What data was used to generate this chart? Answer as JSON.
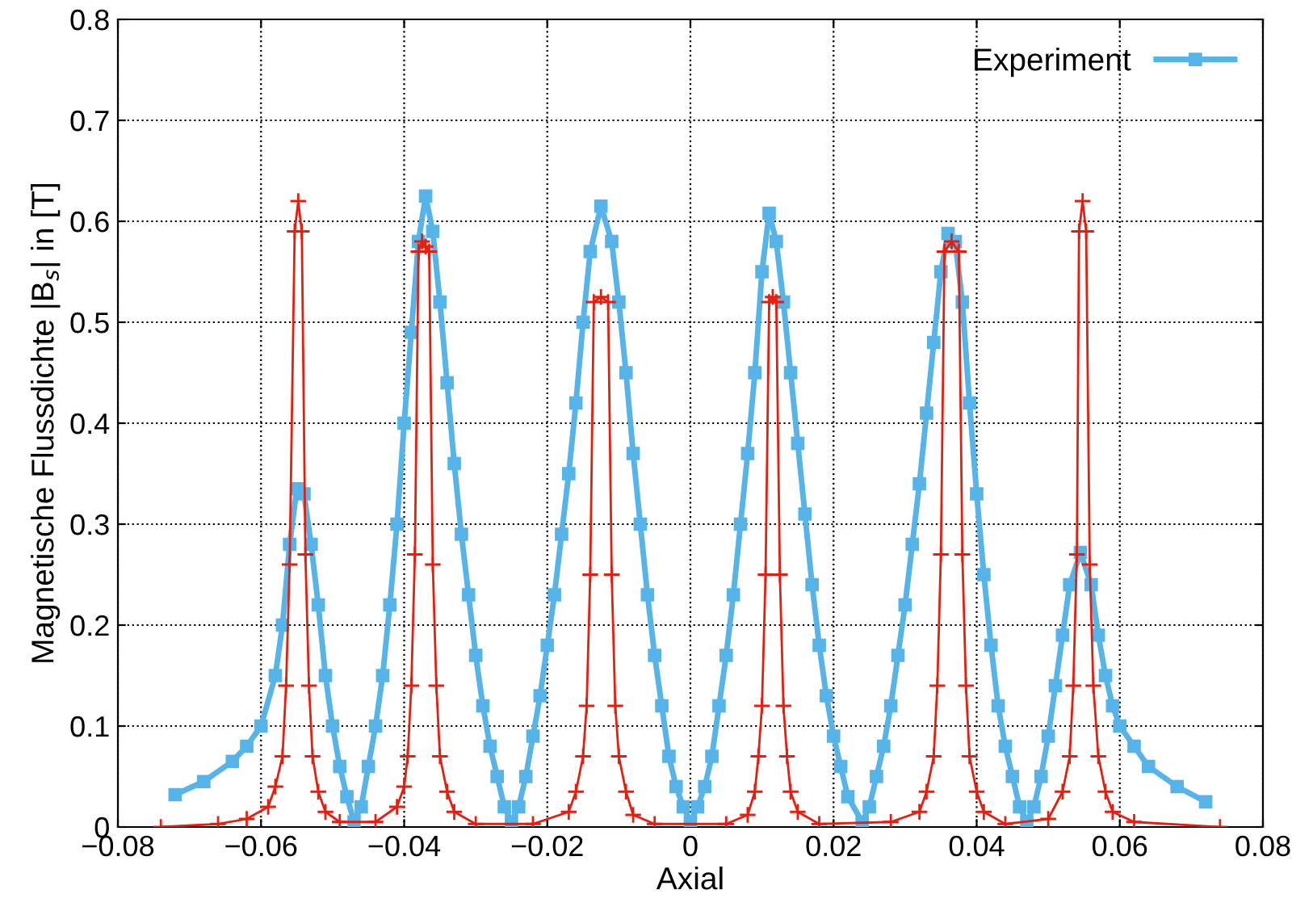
{
  "chart_data": {
    "type": "line",
    "xlabel": "Axial",
    "ylabel": "Magnetische Flussdichte |B$_{s}$| in [T]",
    "xlim": [
      -0.08,
      0.08
    ],
    "ylim": [
      0,
      0.8
    ],
    "xticks": [
      {
        "value": -0.08,
        "label": "−0.08"
      },
      {
        "value": -0.06,
        "label": "−0.06"
      },
      {
        "value": -0.04,
        "label": "−0.04"
      },
      {
        "value": -0.02,
        "label": "−0.02"
      },
      0,
      0.02,
      0.04,
      0.06,
      0.08
    ],
    "yticks": [
      0,
      0.1,
      0.2,
      0.3,
      0.4,
      0.5,
      0.6,
      0.7,
      0.8
    ],
    "grid": true,
    "legend": "top right",
    "line_style": "solid",
    "series": [
      {
        "name": "Experiment",
        "color": "#56b4e9",
        "marker": "square",
        "x": [
          -0.072,
          -0.068,
          -0.064,
          -0.062,
          -0.06,
          -0.058,
          -0.057,
          -0.056,
          -0.055,
          -0.054,
          -0.053,
          -0.052,
          -0.051,
          -0.05,
          -0.049,
          -0.048,
          -0.047,
          -0.046,
          -0.045,
          -0.044,
          -0.043,
          -0.042,
          -0.041,
          -0.04,
          -0.039,
          -0.038,
          -0.037,
          -0.036,
          -0.035,
          -0.034,
          -0.033,
          -0.032,
          -0.031,
          -0.03,
          -0.029,
          -0.028,
          -0.027,
          -0.026,
          -0.025,
          -0.024,
          -0.023,
          -0.022,
          -0.021,
          -0.02,
          -0.019,
          -0.018,
          -0.017,
          -0.016,
          -0.015,
          -0.014,
          -0.0125,
          -0.011,
          -0.01,
          -0.009,
          -0.008,
          -0.007,
          -0.006,
          -0.005,
          -0.004,
          -0.003,
          -0.002,
          -0.001,
          0.0,
          0.001,
          0.002,
          0.003,
          0.004,
          0.005,
          0.006,
          0.007,
          0.008,
          0.009,
          0.01,
          0.011,
          0.012,
          0.013,
          0.014,
          0.015,
          0.016,
          0.017,
          0.018,
          0.019,
          0.02,
          0.021,
          0.022,
          0.024,
          0.025,
          0.026,
          0.027,
          0.028,
          0.029,
          0.03,
          0.031,
          0.032,
          0.033,
          0.034,
          0.035,
          0.036,
          0.037,
          0.038,
          0.039,
          0.04,
          0.041,
          0.042,
          0.043,
          0.044,
          0.045,
          0.046,
          0.047,
          0.048,
          0.049,
          0.05,
          0.051,
          0.052,
          0.053,
          0.0545,
          0.056,
          0.057,
          0.058,
          0.059,
          0.06,
          0.062,
          0.064,
          0.068,
          0.072
        ],
        "values": [
          0.032,
          0.045,
          0.065,
          0.08,
          0.1,
          0.15,
          0.2,
          0.28,
          0.335,
          0.33,
          0.28,
          0.22,
          0.15,
          0.1,
          0.06,
          0.03,
          0.005,
          0.02,
          0.06,
          0.1,
          0.15,
          0.22,
          0.3,
          0.4,
          0.49,
          0.58,
          0.625,
          0.59,
          0.52,
          0.44,
          0.36,
          0.29,
          0.23,
          0.17,
          0.12,
          0.08,
          0.05,
          0.02,
          0.005,
          0.02,
          0.05,
          0.09,
          0.13,
          0.18,
          0.23,
          0.29,
          0.35,
          0.42,
          0.5,
          0.57,
          0.615,
          0.58,
          0.52,
          0.45,
          0.37,
          0.3,
          0.23,
          0.17,
          0.12,
          0.07,
          0.04,
          0.02,
          0.005,
          0.02,
          0.04,
          0.07,
          0.12,
          0.17,
          0.23,
          0.3,
          0.37,
          0.45,
          0.55,
          0.608,
          0.58,
          0.52,
          0.45,
          0.38,
          0.31,
          0.24,
          0.18,
          0.13,
          0.09,
          0.06,
          0.03,
          0.005,
          0.02,
          0.05,
          0.08,
          0.12,
          0.17,
          0.22,
          0.28,
          0.34,
          0.41,
          0.48,
          0.55,
          0.588,
          0.58,
          0.52,
          0.42,
          0.33,
          0.25,
          0.18,
          0.12,
          0.08,
          0.05,
          0.02,
          0.005,
          0.02,
          0.05,
          0.09,
          0.14,
          0.19,
          0.24,
          0.272,
          0.24,
          0.19,
          0.15,
          0.12,
          0.1,
          0.08,
          0.06,
          0.04,
          0.025
        ]
      },
      {
        "color": "#e51e10",
        "marker": "cross",
        "x": [
          -0.074,
          -0.066,
          -0.062,
          -0.059,
          -0.058,
          -0.057,
          -0.0565,
          -0.056,
          -0.0553,
          -0.0548,
          -0.0543,
          -0.0538,
          -0.0533,
          -0.0528,
          -0.052,
          -0.051,
          -0.049,
          -0.044,
          -0.041,
          -0.04,
          -0.0395,
          -0.039,
          -0.0385,
          -0.038,
          -0.0375,
          -0.037,
          -0.0365,
          -0.036,
          -0.0355,
          -0.035,
          -0.034,
          -0.033,
          -0.03,
          -0.022,
          -0.017,
          -0.016,
          -0.015,
          -0.0145,
          -0.014,
          -0.0135,
          -0.0125,
          -0.0115,
          -0.011,
          -0.0105,
          -0.01,
          -0.009,
          -0.008,
          -0.005,
          0.005,
          0.008,
          0.009,
          0.0095,
          0.01,
          0.0105,
          0.011,
          0.0115,
          0.012,
          0.0125,
          0.013,
          0.0135,
          0.014,
          0.015,
          0.018,
          0.028,
          0.032,
          0.033,
          0.034,
          0.0345,
          0.035,
          0.0355,
          0.0365,
          0.0375,
          0.038,
          0.0385,
          0.039,
          0.04,
          0.041,
          0.044,
          0.05,
          0.052,
          0.053,
          0.0535,
          0.054,
          0.0543,
          0.0548,
          0.0553,
          0.0558,
          0.0563,
          0.057,
          0.058,
          0.059,
          0.062,
          0.074
        ],
        "values": [
          0,
          0.003,
          0.008,
          0.02,
          0.04,
          0.07,
          0.14,
          0.26,
          0.59,
          0.62,
          0.59,
          0.27,
          0.14,
          0.07,
          0.035,
          0.015,
          0.005,
          0.005,
          0.02,
          0.04,
          0.07,
          0.14,
          0.27,
          0.57,
          0.58,
          0.575,
          0.57,
          0.26,
          0.14,
          0.07,
          0.035,
          0.015,
          0.003,
          0.003,
          0.015,
          0.035,
          0.07,
          0.12,
          0.25,
          0.52,
          0.525,
          0.52,
          0.25,
          0.12,
          0.07,
          0.035,
          0.012,
          0.003,
          0.003,
          0.012,
          0.035,
          0.07,
          0.12,
          0.25,
          0.52,
          0.525,
          0.52,
          0.25,
          0.12,
          0.07,
          0.035,
          0.015,
          0.003,
          0.005,
          0.015,
          0.035,
          0.07,
          0.14,
          0.27,
          0.57,
          0.58,
          0.57,
          0.27,
          0.14,
          0.07,
          0.035,
          0.015,
          0.003,
          0.008,
          0.035,
          0.07,
          0.14,
          0.27,
          0.59,
          0.62,
          0.59,
          0.26,
          0.14,
          0.07,
          0.035,
          0.015,
          0.005,
          0
        ]
      }
    ]
  }
}
